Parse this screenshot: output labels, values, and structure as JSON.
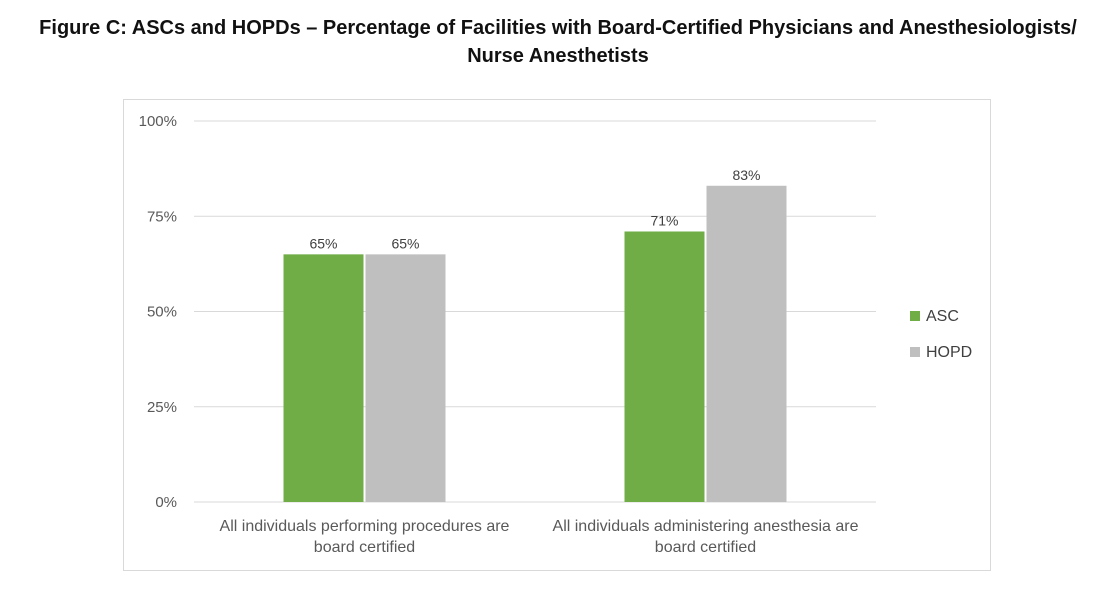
{
  "title": {
    "line1": "Figure C: ASCs and HOPDs – Percentage of Facilities with Board-Certified Physicians and Anesthesiologists/",
    "line2": "Nurse Anesthetists"
  },
  "chart_data": {
    "type": "bar",
    "title": "Figure C: ASCs and HOPDs – Percentage of Facilities with Board-Certified Physicians and Anesthesiologists/ Nurse Anesthetists",
    "categories": [
      [
        "All individuals performing procedures are",
        "board certified"
      ],
      [
        "All individuals administering anesthesia are",
        "board certified"
      ]
    ],
    "series": [
      {
        "name": "ASC",
        "color": "#70ad47",
        "values": [
          65,
          71
        ],
        "labels": [
          "65%",
          "71%"
        ]
      },
      {
        "name": "HOPD",
        "color": "#bfbfbf",
        "values": [
          65,
          83
        ],
        "labels": [
          "65%",
          "83%"
        ]
      }
    ],
    "ylim": [
      0,
      100
    ],
    "yticks": [
      0,
      25,
      50,
      75,
      100
    ],
    "ytick_labels": [
      "0%",
      "25%",
      "50%",
      "75%",
      "100%"
    ],
    "grid": true,
    "gridline_color": "#d9d9d9",
    "legend_position": "right"
  }
}
